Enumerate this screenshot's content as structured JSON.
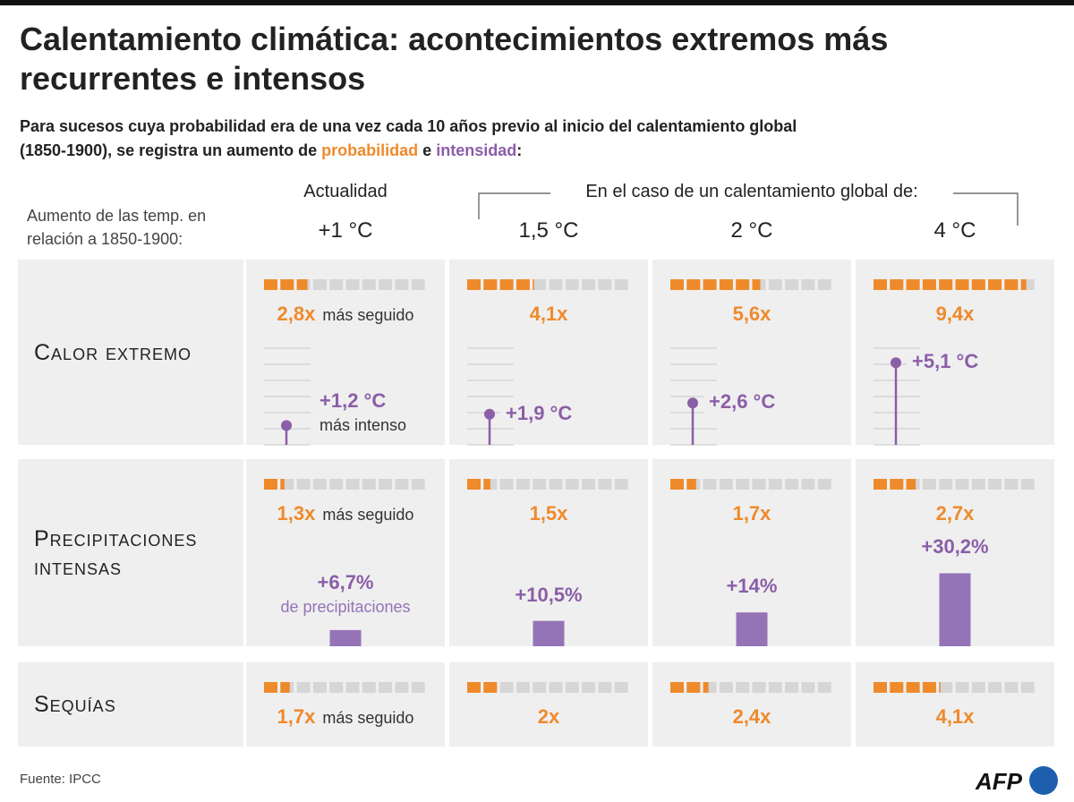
{
  "title": "Calentamiento climática: acontecimientos extremos más recurrentes e intensos",
  "subtitle": {
    "text": "Para sucesos cuya probabilidad era de una vez cada 10 años previo al inicio del calentamiento global (1850-1900), se registra un aumento de",
    "probability": "probabilidad",
    "and": "e",
    "intensity": "intensidad",
    "end": ":"
  },
  "header": {
    "row_label": "Aumento de las temp. en relación a 1850-1900:",
    "current": "Actualidad",
    "future": "En el caso de un calentamiento global de:",
    "columns": [
      "+1 °C",
      "1,5 °C",
      "2 °C",
      "4 °C"
    ]
  },
  "probability_lim": [
    0,
    10
  ],
  "heat_scale": {
    "ylim": [
      0,
      6
    ],
    "gridlines": [
      0,
      1,
      2,
      3,
      4,
      5,
      6
    ]
  },
  "rain_scale": {
    "ylim": [
      0,
      40
    ]
  },
  "rows": [
    {
      "label": "Calor extremo",
      "probability": [
        2.8,
        4.1,
        5.6,
        9.4
      ],
      "probability_labels": [
        "2,8x",
        "4,1x",
        "5,6x",
        "9,4x"
      ],
      "probability_note": "más seguido",
      "intensity": [
        1.2,
        1.9,
        2.6,
        5.1
      ],
      "intensity_labels": [
        "+1,2 °C",
        "+1,9 °C",
        "+2,6 °C",
        "+5,1 °C"
      ],
      "intensity_note": "más intenso"
    },
    {
      "label": "Precipitaciones intensas",
      "probability": [
        1.3,
        1.5,
        1.7,
        2.7
      ],
      "probability_labels": [
        "1,3x",
        "1,5x",
        "1,7x",
        "2,7x"
      ],
      "probability_note": "más seguido",
      "intensity": [
        6.7,
        10.5,
        14,
        30.2
      ],
      "intensity_labels": [
        "+6,7%",
        "+10,5%",
        "+14%",
        "+30,2%"
      ],
      "intensity_note": "de precipitaciones"
    },
    {
      "label": "Sequías",
      "probability": [
        1.7,
        2,
        2.4,
        4.1
      ],
      "probability_labels": [
        "1,7x",
        "2x",
        "2,4x",
        "4,1x"
      ],
      "probability_note": "más seguido"
    }
  ],
  "footer": {
    "source": "Fuente: IPCC",
    "logo": "AFP"
  }
}
